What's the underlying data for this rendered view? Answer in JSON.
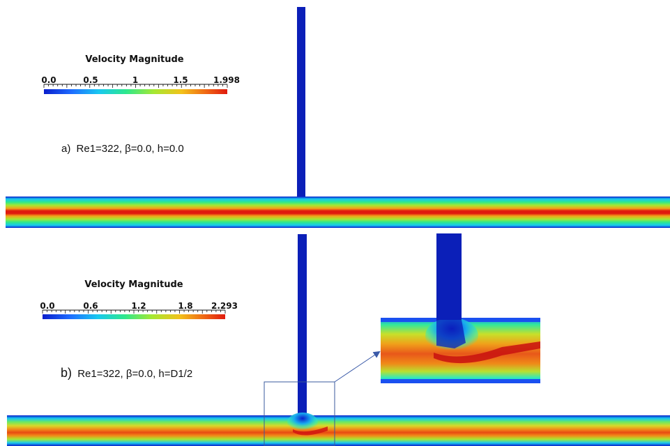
{
  "panel_a": {
    "colorbar": {
      "title": "Velocity Magnitude",
      "ticks": [
        "0.0",
        "0.5",
        "1",
        "1.5",
        "1.998"
      ],
      "range": [
        0.0,
        1.998
      ]
    },
    "caption_prefix": "a)",
    "caption_text": "Re1=322, β=0.0, h=0.0"
  },
  "panel_b": {
    "colorbar": {
      "title": "Velocity Magnitude",
      "ticks": [
        "0.0",
        "0.6",
        "1.2",
        "1.8",
        "2.293"
      ],
      "range": [
        0.0,
        2.293
      ]
    },
    "caption_prefix": "b)",
    "caption_text": "Re1=322, β=0.0, h=D1/2"
  },
  "colormap": [
    "#0a1ecc",
    "#1e6cff",
    "#18c8f0",
    "#2ee88c",
    "#a6e832",
    "#f2c21a",
    "#f06a14",
    "#e01a0e"
  ],
  "pipe_inlet_color": "#0b1fb8"
}
